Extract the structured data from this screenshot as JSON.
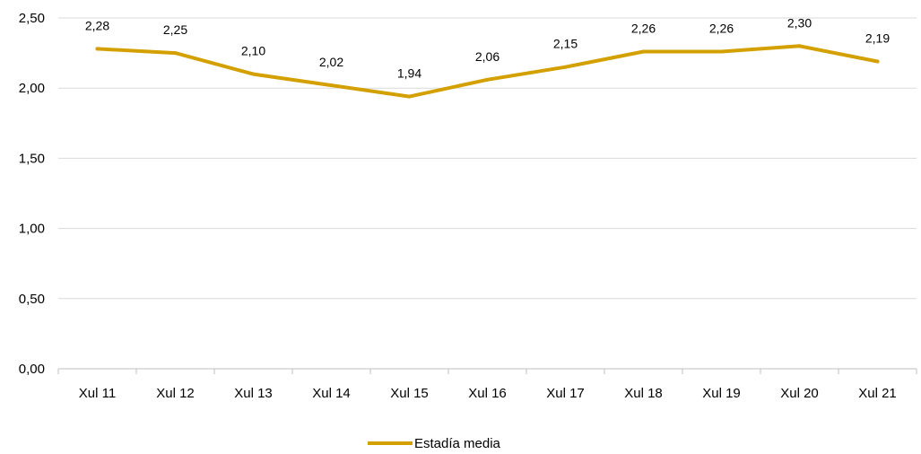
{
  "chart_data": {
    "type": "line",
    "categories": [
      "Xul 11",
      "Xul 12",
      "Xul 13",
      "Xul 14",
      "Xul 15",
      "Xul 16",
      "Xul 17",
      "Xul 18",
      "Xul 19",
      "Xul 20",
      "Xul 21"
    ],
    "series": [
      {
        "name": "Estadía media",
        "values": [
          2.28,
          2.25,
          2.1,
          2.02,
          1.94,
          2.06,
          2.15,
          2.26,
          2.26,
          2.3,
          2.19
        ],
        "labels": [
          "2,28",
          "2,25",
          "2,10",
          "2,02",
          "1,94",
          "2,06",
          "2,15",
          "2,26",
          "2,26",
          "2,30",
          "2,19"
        ],
        "color": "#d4a000"
      }
    ],
    "y_ticks": [
      "0,00",
      "0,50",
      "1,00",
      "1,50",
      "2,00",
      "2,50"
    ],
    "ylim": [
      0,
      2.5
    ],
    "grid": true,
    "legend_position": "bottom"
  }
}
